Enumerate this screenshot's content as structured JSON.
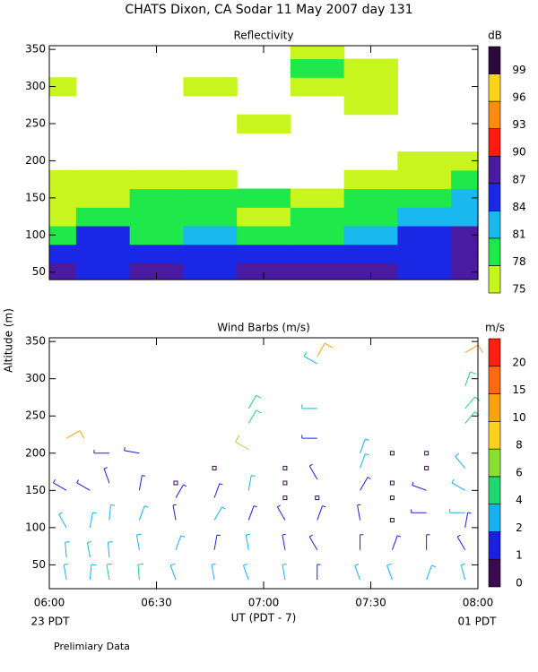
{
  "title": "CHATS Dixon, CA  Sodar  11 May 2007  day 131",
  "y_label": "Altitude (m)",
  "x_label": "UT  (PDT - 7)",
  "x_left_note": "23 PDT",
  "x_right_note": "01 PDT",
  "footer": "Prelimiary Data",
  "chart_data": [
    {
      "type": "contour",
      "title": "Reflectivity",
      "xlim": [
        6,
        8
      ],
      "ylim": [
        40,
        355
      ],
      "xticks": [
        6,
        6.5,
        7,
        7.5,
        8
      ],
      "yticks": [
        50,
        100,
        150,
        200,
        250,
        300,
        350
      ],
      "x": [
        6,
        6.25,
        6.5,
        6.75,
        7,
        7.25,
        7.5,
        7.75,
        8
      ],
      "y": [
        50,
        75,
        100,
        125,
        150,
        175,
        200,
        225,
        250,
        275,
        300,
        325,
        350
      ],
      "z": [
        [
          88,
          86,
          88,
          86,
          88,
          88,
          88,
          86,
          88
        ],
        [
          86,
          86,
          86,
          86,
          85,
          85,
          86,
          86,
          88
        ],
        [
          79,
          84,
          80,
          81,
          80,
          80,
          81,
          84,
          88
        ],
        [
          76,
          79,
          78,
          79,
          77,
          79,
          79,
          81,
          83
        ],
        [
          76,
          77,
          79,
          80,
          78,
          76,
          78,
          79,
          82
        ],
        [
          76,
          76,
          76,
          77,
          null,
          null,
          76,
          76,
          79
        ],
        [
          null,
          null,
          null,
          null,
          null,
          null,
          null,
          76,
          76
        ],
        [
          null,
          null,
          null,
          null,
          null,
          null,
          null,
          null,
          null
        ],
        [
          null,
          null,
          null,
          null,
          76,
          null,
          null,
          null,
          null
        ],
        [
          null,
          null,
          null,
          null,
          null,
          null,
          76,
          null,
          null
        ],
        [
          76,
          null,
          null,
          76,
          null,
          76,
          76,
          null,
          null
        ],
        [
          null,
          null,
          null,
          null,
          null,
          79,
          76,
          null,
          null
        ],
        [
          null,
          null,
          null,
          null,
          null,
          76,
          null,
          null,
          null
        ]
      ],
      "colorbar": {
        "label": "dB",
        "levels": [
          75,
          78,
          81,
          84,
          87,
          90,
          93,
          96,
          99
        ],
        "colors": [
          "#c8f51e",
          "#1ee84a",
          "#19b9f0",
          "#1a28e6",
          "#4a1aa0",
          "#ff1a10",
          "#ff8a10",
          "#ffd21e",
          "#2a0a3a"
        ]
      }
    },
    {
      "type": "barbs",
      "title": "Wind Barbs (m/s)",
      "xlim": [
        6,
        8
      ],
      "ylim": [
        18,
        355
      ],
      "xticks": [
        {
          "value": 6,
          "label": "06:00"
        },
        {
          "value": 6.5,
          "label": "06:30"
        },
        {
          "value": 7,
          "label": "07:00"
        },
        {
          "value": 7.5,
          "label": "07:30"
        },
        {
          "value": 8,
          "label": "08:00"
        }
      ],
      "yticks": [
        50,
        100,
        150,
        200,
        250,
        300,
        350
      ],
      "x": [
        6.08,
        6.08,
        6.08,
        6.08,
        6.08,
        6.19,
        6.19,
        6.19,
        6.19,
        6.28,
        6.28,
        6.28,
        6.28,
        6.28,
        6.42,
        6.42,
        6.42,
        6.42,
        6.42,
        6.59,
        6.59,
        6.59,
        6.59,
        6.59,
        6.77,
        6.77,
        6.77,
        6.77,
        6.77,
        6.93,
        6.93,
        6.93,
        6.93,
        6.93,
        6.93,
        6.93,
        7.1,
        7.1,
        7.1,
        7.1,
        7.1,
        7.1,
        7.25,
        7.25,
        7.25,
        7.25,
        7.25,
        7.25,
        7.25,
        7.25,
        7.25,
        7.45,
        7.45,
        7.45,
        7.45,
        7.45,
        7.45,
        7.6,
        7.6,
        7.6,
        7.6,
        7.6,
        7.6,
        7.76,
        7.76,
        7.76,
        7.76,
        7.76,
        7.76,
        7.94,
        7.94,
        7.94,
        7.94,
        7.94,
        7.94,
        7.94,
        7.94,
        7.94,
        7.94
      ],
      "y": [
        30,
        60,
        100,
        150,
        220,
        30,
        60,
        100,
        150,
        30,
        60,
        110,
        160,
        200,
        30,
        70,
        110,
        150,
        200,
        30,
        70,
        110,
        140,
        160,
        30,
        70,
        110,
        140,
        180,
        30,
        70,
        110,
        150,
        205,
        240,
        260,
        30,
        70,
        110,
        140,
        160,
        180,
        30,
        70,
        110,
        140,
        165,
        220,
        260,
        320,
        330,
        30,
        70,
        110,
        150,
        180,
        200,
        30,
        70,
        110,
        140,
        160,
        200,
        30,
        70,
        120,
        150,
        180,
        200,
        30,
        70,
        100,
        120,
        150,
        180,
        240,
        260,
        290,
        335
      ],
      "speed": [
        2,
        3,
        2,
        1.5,
        10,
        3,
        2,
        2,
        1,
        4,
        3,
        2,
        1,
        1,
        4,
        3,
        2,
        1,
        1,
        3,
        2,
        1,
        1,
        0,
        2,
        1,
        2,
        1,
        0,
        2,
        2,
        1,
        2,
        7,
        4,
        4,
        2,
        1,
        1,
        0,
        0,
        0,
        1,
        1,
        1,
        0,
        1,
        1,
        2,
        3,
        10,
        2,
        1,
        1,
        1,
        2,
        2,
        3,
        1,
        0,
        0,
        0,
        0,
        2,
        1,
        1,
        1,
        0,
        0,
        2,
        1,
        1,
        2,
        2,
        3,
        4,
        5,
        5,
        12
      ],
      "direction": [
        350,
        355,
        330,
        300,
        60,
        5,
        350,
        10,
        300,
        350,
        355,
        5,
        340,
        270,
        355,
        350,
        20,
        10,
        280,
        340,
        20,
        350,
        30,
        0,
        350,
        10,
        30,
        20,
        0,
        340,
        350,
        20,
        10,
        300,
        30,
        30,
        350,
        350,
        330,
        0,
        0,
        0,
        0,
        330,
        20,
        0,
        330,
        270,
        270,
        300,
        30,
        340,
        0,
        350,
        30,
        20,
        20,
        340,
        20,
        0,
        0,
        0,
        0,
        20,
        0,
        270,
        290,
        0,
        0,
        345,
        330,
        10,
        270,
        300,
        320,
        40,
        40,
        20,
        60
      ],
      "colorbar": {
        "label": "m/s",
        "levels": [
          0,
          1,
          2,
          4,
          6,
          8,
          10,
          15,
          20
        ],
        "colors": [
          "#3c0a50",
          "#1a20e0",
          "#19b0f0",
          "#1ed870",
          "#8ae030",
          "#ffd020",
          "#ffa010",
          "#ff6a10",
          "#ff2010"
        ]
      }
    }
  ]
}
